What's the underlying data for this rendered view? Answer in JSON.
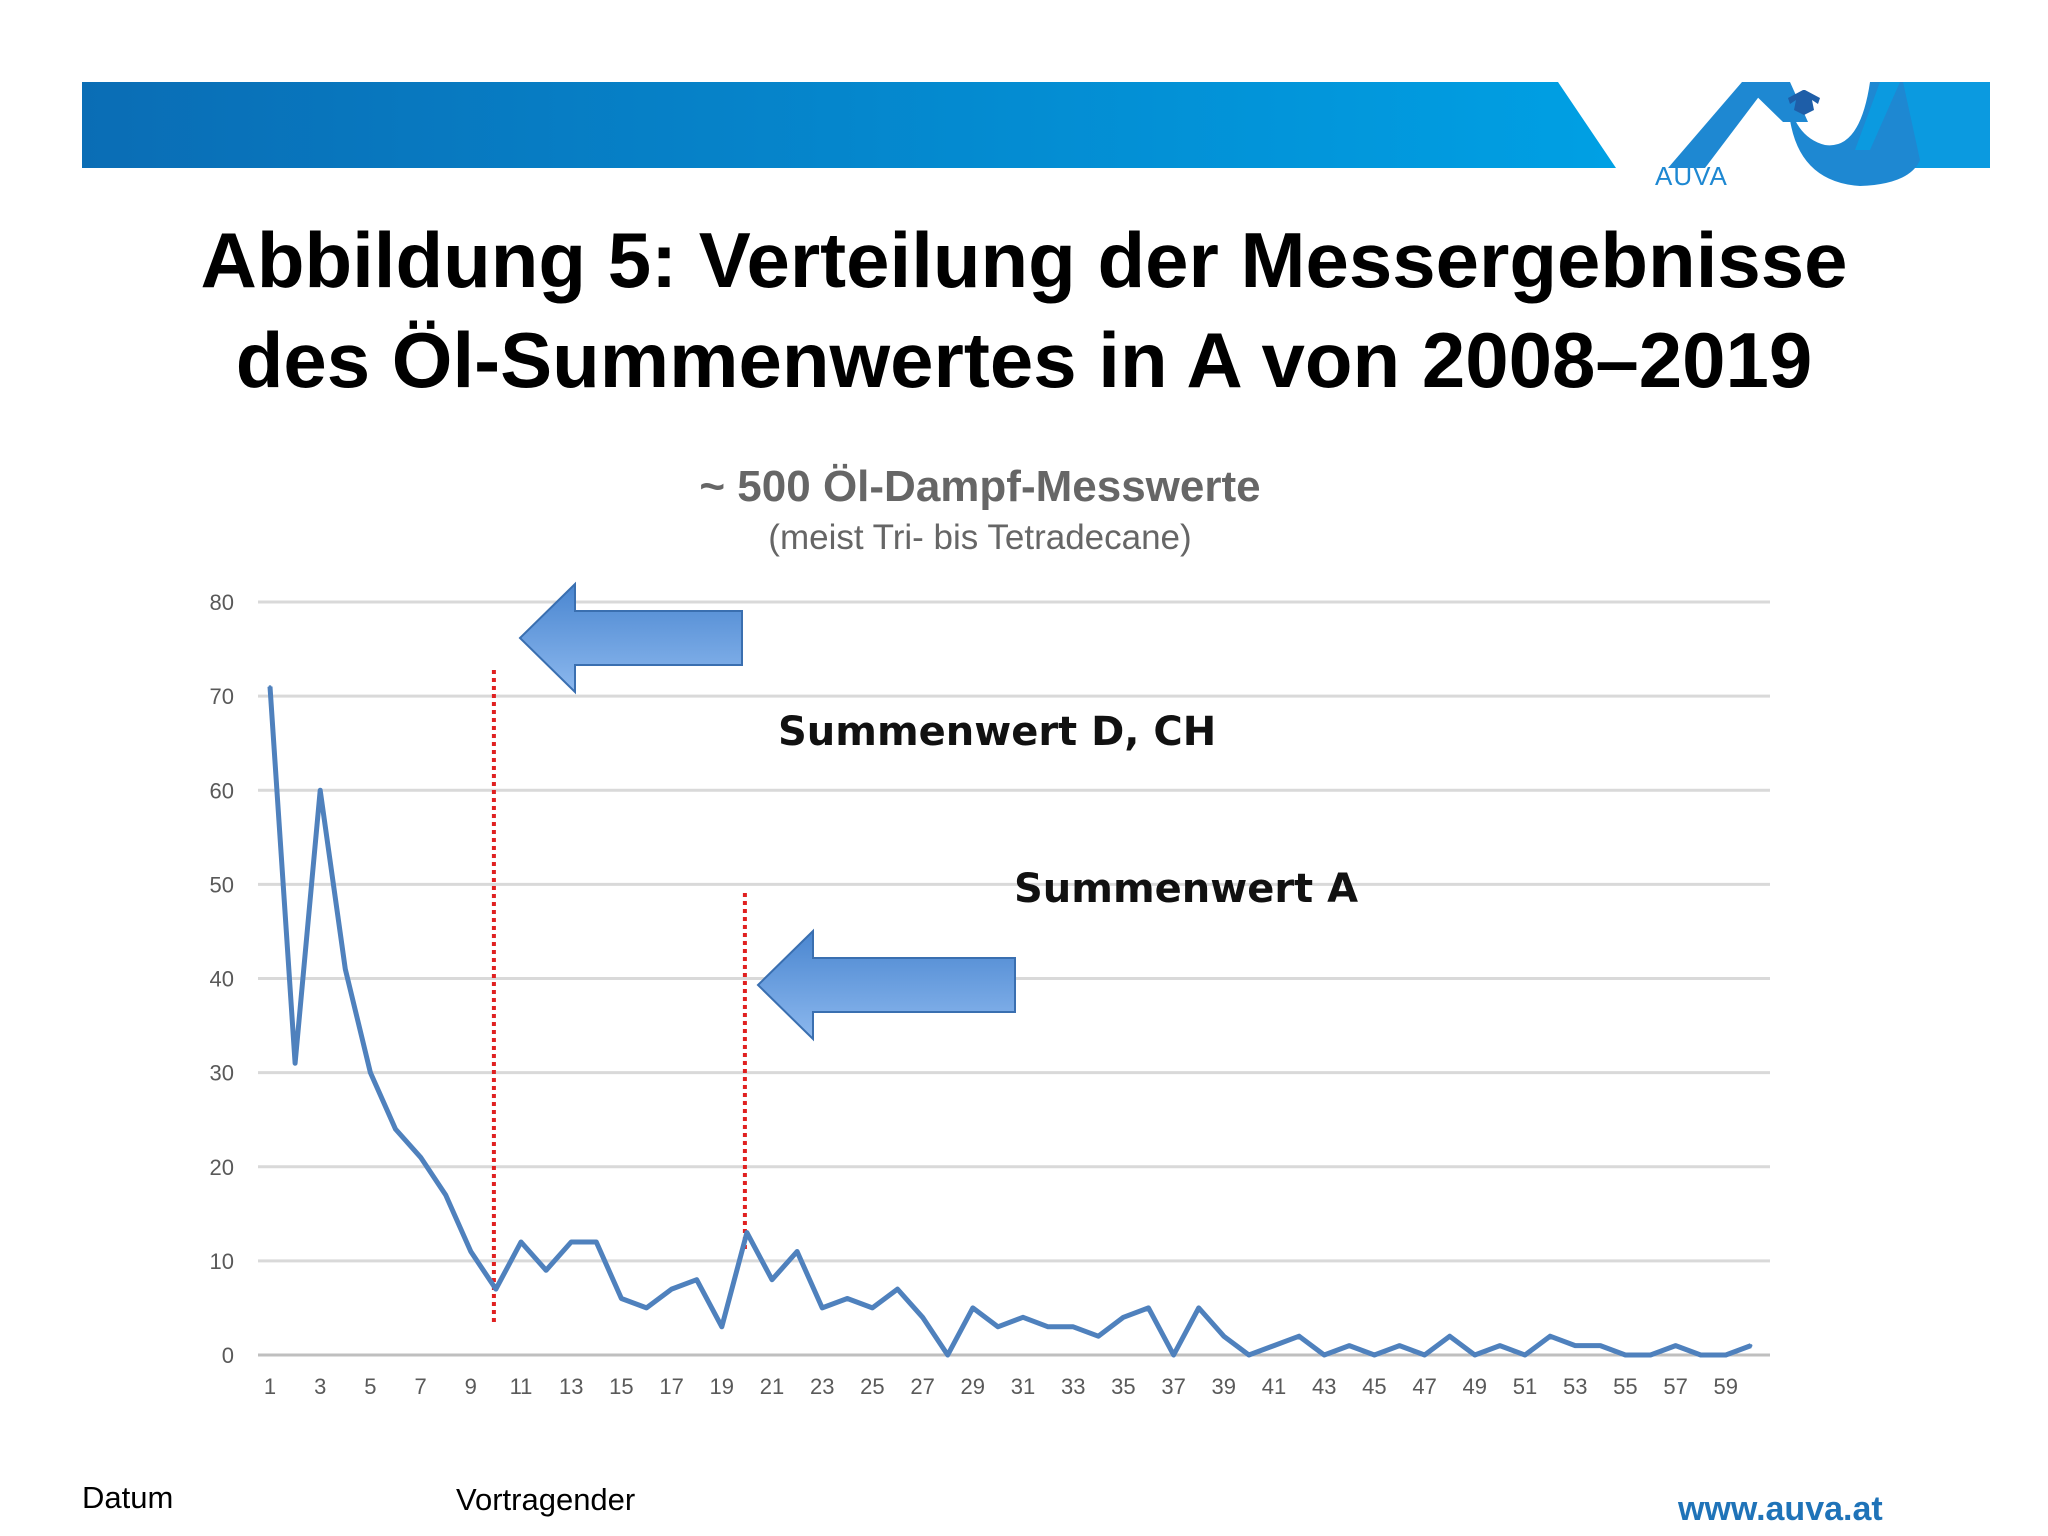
{
  "header": {
    "logo_text": "AUVA",
    "title_line1": "Abbildung 5: Verteilung der Messergebnisse",
    "title_line2": "des Öl-Summenwertes in A von 2008–2019",
    "banner_color_left": "#0a6db5",
    "banner_color_right": "#00a0e4"
  },
  "chart_data": {
    "type": "line",
    "title": "~ 500 Öl-Dampf-Messwerte",
    "subtitle": "(meist Tri- bis Tetradecane)",
    "x": [
      1,
      2,
      3,
      4,
      5,
      6,
      7,
      8,
      9,
      10,
      11,
      12,
      13,
      14,
      15,
      16,
      17,
      18,
      19,
      20,
      21,
      22,
      23,
      24,
      25,
      26,
      27,
      28,
      29,
      30,
      31,
      32,
      33,
      34,
      35,
      36,
      37,
      38,
      39,
      40,
      41,
      42,
      43,
      44,
      45,
      46,
      47,
      48,
      49,
      50,
      51,
      52,
      53,
      54,
      55,
      56,
      57,
      58,
      59,
      60
    ],
    "x_tick_labels": [
      "1",
      "3",
      "5",
      "7",
      "9",
      "11",
      "13",
      "15",
      "17",
      "19",
      "21",
      "23",
      "25",
      "27",
      "29",
      "31",
      "33",
      "35",
      "37",
      "39",
      "41",
      "43",
      "45",
      "47",
      "49",
      "51",
      "53",
      "55",
      "57",
      "59"
    ],
    "series": [
      {
        "values": [
          71,
          31,
          60,
          41,
          30,
          24,
          21,
          17,
          11,
          7,
          12,
          9,
          12,
          12,
          6,
          5,
          7,
          8,
          3,
          13,
          8,
          11,
          5,
          6,
          5,
          7,
          4,
          0,
          5,
          3,
          4,
          3,
          3,
          2,
          4,
          5,
          0,
          5,
          2,
          0,
          1,
          2,
          0,
          1,
          0,
          1,
          0,
          2,
          0,
          1,
          0,
          2,
          1,
          1,
          0,
          0,
          1,
          0,
          0,
          1
        ],
        "color": "#4f81bd"
      }
    ],
    "ylim": [
      0,
      80
    ],
    "y_ticks": [
      "0",
      "10",
      "20",
      "30",
      "40",
      "50",
      "60",
      "70",
      "80"
    ],
    "grid": true,
    "annotations": [
      {
        "text": "Summenwert D, CH",
        "marker_x": 10,
        "marker_color": "#e02020",
        "arrow_color": "#5b9bd5"
      },
      {
        "text": "Summenwert A",
        "marker_x": 20,
        "marker_color": "#e02020",
        "arrow_color": "#5b9bd5"
      }
    ]
  },
  "footer": {
    "datum": "Datum",
    "vortragender": "Vortragender",
    "url": "www.auva.at"
  }
}
